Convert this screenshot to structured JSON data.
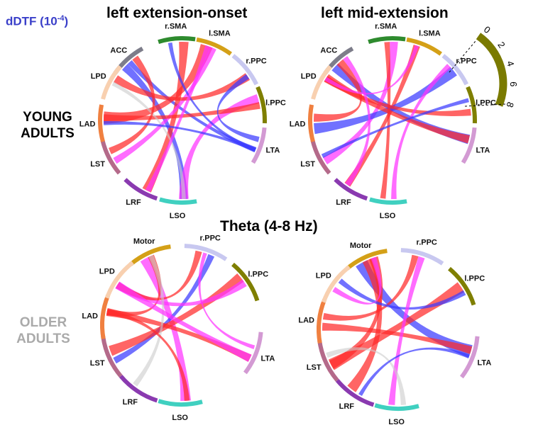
{
  "header": {
    "unit_label": "dDTF (10",
    "unit_exp": "-4",
    "unit_close": ")",
    "col1_title": "left extension-onset",
    "col2_title": "left mid-extension",
    "center_title": "Theta (4-8 Hz)",
    "young_line1": "YOUNG",
    "young_line2": "ADULTS",
    "older_line1": "OLDER",
    "older_line2": "ADULTS"
  },
  "scale": {
    "ticks": [
      "0",
      "2",
      "4",
      "6",
      "8"
    ],
    "color": "#7a7a00"
  },
  "colors": {
    "ribbon_red": "#ff2a2a",
    "ribbon_magenta": "#ff33ff",
    "ribbon_blue": "#3a3aff",
    "ribbon_gray": "#cccccc"
  },
  "diagrams": [
    {
      "name": "young-extension-onset",
      "nodes": [
        {
          "label": "ACC",
          "color": "#7d7d8a"
        },
        {
          "label": "r.SMA",
          "color": "#2e8b2e"
        },
        {
          "label": "l.SMA",
          "color": "#d4a017"
        },
        {
          "label": "r.PPC",
          "color": "#c8c8f0"
        },
        {
          "label": "l.PPC",
          "color": "#7f7f00"
        },
        {
          "label": "LTA",
          "color": "#d39ad3"
        },
        {
          "label": "LSO",
          "color": "#40d0c0"
        },
        {
          "label": "LRF",
          "color": "#8a3ab0"
        },
        {
          "label": "LST",
          "color": "#b46a8a"
        },
        {
          "label": "LAD",
          "color": "#f08040"
        },
        {
          "label": "LPD",
          "color": "#f8d0b0"
        }
      ]
    },
    {
      "name": "young-mid-extension",
      "nodes": [
        {
          "label": "ACC",
          "color": "#7d7d8a"
        },
        {
          "label": "r.SMA",
          "color": "#2e8b2e"
        },
        {
          "label": "l.SMA",
          "color": "#d4a017"
        },
        {
          "label": "r.PPC",
          "color": "#c8c8f0"
        },
        {
          "label": "l.PPC",
          "color": "#7f7f00"
        },
        {
          "label": "LTA",
          "color": "#d39ad3"
        },
        {
          "label": "LSO",
          "color": "#40d0c0"
        },
        {
          "label": "LRF",
          "color": "#8a3ab0"
        },
        {
          "label": "LST",
          "color": "#b46a8a"
        },
        {
          "label": "LAD",
          "color": "#f08040"
        },
        {
          "label": "LPD",
          "color": "#f8d0b0"
        }
      ]
    },
    {
      "name": "older-extension-onset",
      "nodes": [
        {
          "label": "Motor",
          "color": "#d4a017"
        },
        {
          "label": "r.PPC",
          "color": "#c8c8f0"
        },
        {
          "label": "l.PPC",
          "color": "#7f7f00"
        },
        {
          "label": "LTA",
          "color": "#d39ad3"
        },
        {
          "label": "LSO",
          "color": "#40d0c0"
        },
        {
          "label": "LRF",
          "color": "#8a3ab0"
        },
        {
          "label": "LST",
          "color": "#b46a8a"
        },
        {
          "label": "LAD",
          "color": "#f08040"
        },
        {
          "label": "LPD",
          "color": "#f8d0b0"
        }
      ]
    },
    {
      "name": "older-mid-extension",
      "nodes": [
        {
          "label": "Motor",
          "color": "#d4a017"
        },
        {
          "label": "r.PPC",
          "color": "#c8c8f0"
        },
        {
          "label": "l.PPC",
          "color": "#7f7f00"
        },
        {
          "label": "LTA",
          "color": "#d39ad3"
        },
        {
          "label": "LSO",
          "color": "#40d0c0"
        },
        {
          "label": "LRF",
          "color": "#8a3ab0"
        },
        {
          "label": "LST",
          "color": "#b46a8a"
        },
        {
          "label": "LAD",
          "color": "#f08040"
        },
        {
          "label": "LPD",
          "color": "#f8d0b0"
        }
      ]
    }
  ]
}
